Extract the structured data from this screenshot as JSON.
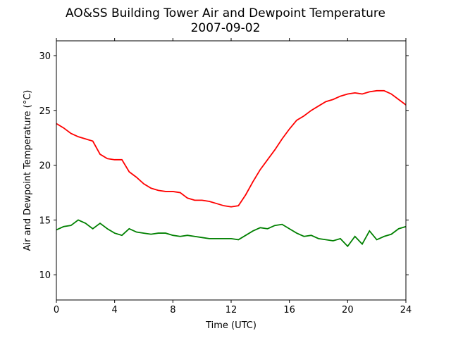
{
  "chart_data": {
    "type": "line",
    "title": "AO&SS Building Tower Air and Dewpoint Temperature",
    "subtitle": "2007-09-02",
    "x_label": "Time (UTC)",
    "y_label": "Air and Dewpoint Temperature (°C)",
    "x": [
      0,
      0.5,
      1,
      1.5,
      2,
      2.5,
      3,
      3.5,
      4,
      4.5,
      5,
      5.5,
      6,
      6.5,
      7,
      7.5,
      8,
      8.5,
      9,
      9.5,
      10,
      10.5,
      11,
      11.5,
      12,
      12.5,
      13,
      13.5,
      14,
      14.5,
      15,
      15.5,
      16,
      16.5,
      17,
      17.5,
      18,
      18.5,
      19,
      19.5,
      20,
      20.5,
      21,
      21.5,
      22,
      22.5,
      23,
      23.5,
      24
    ],
    "series": [
      {
        "color": "#ff0000",
        "values": [
          23.8,
          23.4,
          22.9,
          22.6,
          22.4,
          22.2,
          21.0,
          20.6,
          20.5,
          20.5,
          19.4,
          18.9,
          18.3,
          17.9,
          17.7,
          17.6,
          17.6,
          17.5,
          17.0,
          16.8,
          16.8,
          16.7,
          16.5,
          16.3,
          16.2,
          16.3,
          17.3,
          18.5,
          19.6,
          20.5,
          21.4,
          22.4,
          23.3,
          24.1,
          24.5,
          25.0,
          25.4,
          25.8,
          26.0,
          26.3,
          26.5,
          26.6,
          26.5,
          26.7,
          26.8,
          26.8,
          26.5,
          26.0,
          25.5
        ]
      },
      {
        "color": "#008000",
        "values": [
          14.1,
          14.4,
          14.5,
          15.0,
          14.7,
          14.2,
          14.7,
          14.2,
          13.8,
          13.6,
          14.2,
          13.9,
          13.8,
          13.7,
          13.8,
          13.8,
          13.6,
          13.5,
          13.6,
          13.5,
          13.4,
          13.3,
          13.3,
          13.3,
          13.3,
          13.2,
          13.6,
          14.0,
          14.3,
          14.2,
          14.5,
          14.6,
          14.2,
          13.8,
          13.5,
          13.6,
          13.3,
          13.2,
          13.1,
          13.3,
          12.6,
          13.5,
          12.8,
          14.0,
          13.2,
          13.5,
          13.7,
          14.2,
          14.4
        ]
      }
    ],
    "xlim": [
      0,
      24
    ],
    "xticks": [
      0,
      4,
      8,
      12,
      16,
      20,
      24
    ],
    "ylim": [
      7.7,
      31.35
    ],
    "yticks": [
      10,
      15,
      20,
      25,
      30
    ],
    "grid": false
  }
}
